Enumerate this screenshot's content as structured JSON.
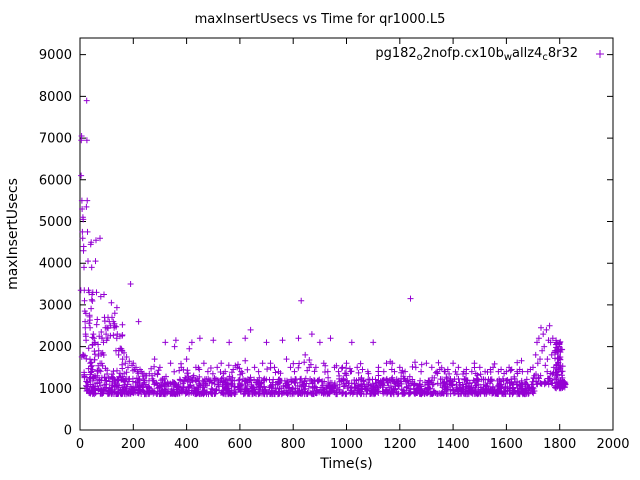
{
  "chart_data": {
    "type": "scatter",
    "title": "maxInsertUsecs vs Time for qr1000.L5",
    "xlabel": "Time(s)",
    "ylabel": "maxInsertUsecs",
    "xlim": [
      0,
      2000
    ],
    "ylim": [
      0,
      9400
    ],
    "xticks": [
      0,
      200,
      400,
      600,
      800,
      1000,
      1200,
      1400,
      1600,
      1800,
      2000
    ],
    "yticks": [
      0,
      1000,
      2000,
      3000,
      4000,
      5000,
      6000,
      7000,
      8000,
      9000
    ],
    "grid": false,
    "legend_position": "top-right-inside",
    "series": [
      {
        "name": "pg182o2nofp.cx10bwallz4c8r32",
        "label_segments": [
          {
            "t": "pg182"
          },
          {
            "t": "o",
            "sub": true
          },
          {
            "t": "2nofp.cx10b"
          },
          {
            "t": "w",
            "sub": true
          },
          {
            "t": "allz4"
          },
          {
            "t": "c",
            "sub": true
          },
          {
            "t": "8r32"
          }
        ],
        "marker": "plus",
        "color": "#9400d3",
        "points_early": [
          [
            3,
            3350
          ],
          [
            4,
            6100
          ],
          [
            5,
            6950
          ],
          [
            6,
            7050
          ],
          [
            7,
            5500
          ],
          [
            8,
            5300
          ],
          [
            9,
            4750
          ],
          [
            10,
            4600
          ],
          [
            11,
            5100
          ],
          [
            12,
            5050
          ],
          [
            13,
            4300
          ],
          [
            14,
            4400
          ],
          [
            15,
            3900
          ],
          [
            16,
            3350
          ],
          [
            17,
            3100
          ],
          [
            18,
            2850
          ],
          [
            19,
            2600
          ],
          [
            20,
            2450
          ],
          [
            21,
            2300
          ],
          [
            22,
            2250
          ],
          [
            23,
            2150
          ],
          [
            24,
            5350
          ],
          [
            25,
            7900
          ],
          [
            26,
            6950
          ],
          [
            27,
            5500
          ],
          [
            28,
            4750
          ],
          [
            30,
            4050
          ],
          [
            32,
            3350
          ],
          [
            34,
            3300
          ],
          [
            36,
            2750
          ],
          [
            38,
            2450
          ],
          [
            40,
            4450
          ],
          [
            42,
            4500
          ],
          [
            44,
            3900
          ],
          [
            45,
            3250
          ],
          [
            48,
            3300
          ],
          [
            50,
            2300
          ],
          [
            52,
            2200
          ],
          [
            55,
            2100
          ],
          [
            58,
            4050
          ],
          [
            60,
            4550
          ],
          [
            62,
            3300
          ],
          [
            65,
            2650
          ],
          [
            68,
            2050
          ],
          [
            70,
            1900
          ],
          [
            72,
            2250
          ],
          [
            75,
            4600
          ],
          [
            78,
            3200
          ],
          [
            80,
            2350
          ],
          [
            82,
            2200
          ],
          [
            85,
            1850
          ],
          [
            88,
            2100
          ],
          [
            90,
            3250
          ],
          [
            92,
            2700
          ],
          [
            95,
            2450
          ],
          [
            98,
            2300
          ],
          [
            100,
            2150
          ],
          [
            105,
            2700
          ],
          [
            110,
            2600
          ],
          [
            115,
            2500
          ],
          [
            118,
            3050
          ],
          [
            120,
            2700
          ],
          [
            125,
            2600
          ],
          [
            128,
            2450
          ],
          [
            130,
            2500
          ],
          [
            135,
            1900
          ],
          [
            138,
            2200
          ],
          [
            140,
            2300
          ],
          [
            145,
            1800
          ],
          [
            150,
            2250
          ],
          [
            155,
            1950
          ],
          [
            160,
            1700
          ],
          [
            165,
            1850
          ],
          [
            170,
            1600
          ],
          [
            175,
            1750
          ],
          [
            180,
            1500
          ],
          [
            185,
            1650
          ],
          [
            190,
            3500
          ],
          [
            195,
            1550
          ],
          [
            200,
            1600
          ],
          [
            205,
            1450
          ],
          [
            210,
            1500
          ],
          [
            215,
            1400
          ],
          [
            220,
            2600
          ],
          [
            225,
            1450
          ],
          [
            230,
            1400
          ],
          [
            235,
            1350
          ],
          [
            240,
            1350
          ],
          [
            245,
            1300
          ],
          [
            250,
            1300
          ],
          [
            260,
            1350
          ],
          [
            270,
            1300
          ],
          [
            280,
            1700
          ],
          [
            290,
            1350
          ],
          [
            300,
            1500
          ]
        ],
        "points_mid": [
          [
            320,
            2100
          ],
          [
            340,
            1600
          ],
          [
            355,
            2000
          ],
          [
            360,
            2150
          ],
          [
            380,
            1500
          ],
          [
            400,
            1700
          ],
          [
            410,
            1950
          ],
          [
            420,
            2100
          ],
          [
            435,
            1500
          ],
          [
            450,
            2200
          ],
          [
            465,
            1600
          ],
          [
            480,
            1400
          ],
          [
            500,
            2150
          ],
          [
            515,
            1500
          ],
          [
            530,
            1600
          ],
          [
            545,
            1400
          ],
          [
            560,
            2100
          ],
          [
            575,
            1450
          ],
          [
            590,
            1500
          ],
          [
            605,
            1400
          ],
          [
            620,
            2200
          ],
          [
            640,
            2400
          ],
          [
            655,
            1500
          ],
          [
            670,
            1400
          ],
          [
            685,
            1600
          ],
          [
            700,
            2100
          ],
          [
            715,
            1600
          ],
          [
            730,
            1500
          ],
          [
            745,
            1400
          ],
          [
            760,
            2150
          ],
          [
            775,
            1700
          ],
          [
            790,
            1500
          ],
          [
            805,
            1400
          ],
          [
            820,
            2200
          ],
          [
            830,
            3100
          ],
          [
            845,
            1800
          ],
          [
            860,
            1500
          ],
          [
            870,
            2300
          ],
          [
            885,
            1500
          ],
          [
            900,
            2100
          ],
          [
            915,
            1600
          ],
          [
            930,
            1400
          ],
          [
            940,
            2200
          ],
          [
            955,
            1500
          ],
          [
            970,
            1400
          ],
          [
            985,
            1500
          ],
          [
            1000,
            1600
          ],
          [
            1015,
            1400
          ],
          [
            1020,
            2100
          ],
          [
            1040,
            1500
          ],
          [
            1060,
            1450
          ],
          [
            1080,
            1400
          ],
          [
            1100,
            2100
          ],
          [
            1120,
            1500
          ],
          [
            1140,
            1400
          ],
          [
            1150,
            1600
          ],
          [
            1170,
            1450
          ],
          [
            1180,
            1400
          ],
          [
            1200,
            1500
          ],
          [
            1220,
            1400
          ],
          [
            1240,
            3150
          ],
          [
            1260,
            1500
          ],
          [
            1280,
            1400
          ],
          [
            1300,
            1600
          ],
          [
            1320,
            1500
          ],
          [
            1340,
            1400
          ],
          [
            1350,
            1450
          ],
          [
            1370,
            1400
          ],
          [
            1380,
            1450
          ],
          [
            1400,
            1600
          ],
          [
            1420,
            1500
          ],
          [
            1440,
            1400
          ],
          [
            1450,
            1450
          ],
          [
            1470,
            1400
          ],
          [
            1480,
            1600
          ],
          [
            1500,
            1500
          ],
          [
            1520,
            1400
          ],
          [
            1540,
            1450
          ],
          [
            1550,
            1500
          ],
          [
            1570,
            1400
          ],
          [
            1580,
            1450
          ],
          [
            1600,
            1400
          ],
          [
            1610,
            1500
          ],
          [
            1620,
            1450
          ],
          [
            1640,
            1400
          ],
          [
            1650,
            1450
          ],
          [
            1660,
            1400
          ],
          [
            1680,
            1400
          ],
          [
            1690,
            1450
          ]
        ],
        "points_end": [
          [
            1700,
            1500
          ],
          [
            1705,
            1300
          ],
          [
            1710,
            1800
          ],
          [
            1715,
            2100
          ],
          [
            1718,
            1600
          ],
          [
            1722,
            2200
          ],
          [
            1726,
            1700
          ],
          [
            1730,
            2450
          ],
          [
            1734,
            1900
          ],
          [
            1738,
            2300
          ],
          [
            1742,
            2000
          ],
          [
            1746,
            1550
          ],
          [
            1750,
            2400
          ],
          [
            1754,
            1700
          ],
          [
            1758,
            2150
          ],
          [
            1762,
            2500
          ],
          [
            1766,
            2100
          ],
          [
            1770,
            1800
          ],
          [
            1774,
            2200
          ],
          [
            1778,
            1500
          ],
          [
            1782,
            1900
          ],
          [
            1786,
            2100
          ],
          [
            1790,
            1300
          ],
          [
            1794,
            1600
          ],
          [
            1798,
            2050
          ],
          [
            1802,
            1200
          ],
          [
            1806,
            1400
          ],
          [
            1810,
            1250
          ],
          [
            1814,
            1100
          ],
          [
            1818,
            1150
          ]
        ],
        "noise_seed": 1234,
        "noise_bands": [
          {
            "count": 1350,
            "t_min": 15,
            "t_max": 1705,
            "t_pow": 1.0,
            "y_min": 860,
            "y_max": 1230,
            "y_pow": 1.8
          },
          {
            "count": 200,
            "t_min": 15,
            "t_max": 1700,
            "t_pow": 1.35,
            "y_min": 1180,
            "y_max": 1680,
            "y_pow": 2.2
          },
          {
            "count": 70,
            "t_min": 5,
            "t_max": 160,
            "t_pow": 1.0,
            "y_min": 1250,
            "y_max": 3150,
            "y_pow": 2.0
          },
          {
            "count": 80,
            "t_min": 1782,
            "t_max": 1812,
            "t_pow": 1.0,
            "y_min": 1000,
            "y_max": 2150,
            "y_pow": 1.6
          },
          {
            "count": 30,
            "t_min": 1700,
            "t_max": 1782,
            "t_pow": 1.0,
            "y_min": 1080,
            "y_max": 1400,
            "y_pow": 2.0
          },
          {
            "count": 25,
            "t_min": 1804,
            "t_max": 1822,
            "t_pow": 1.0,
            "y_min": 1020,
            "y_max": 1200,
            "y_pow": 1.0
          }
        ]
      }
    ]
  }
}
